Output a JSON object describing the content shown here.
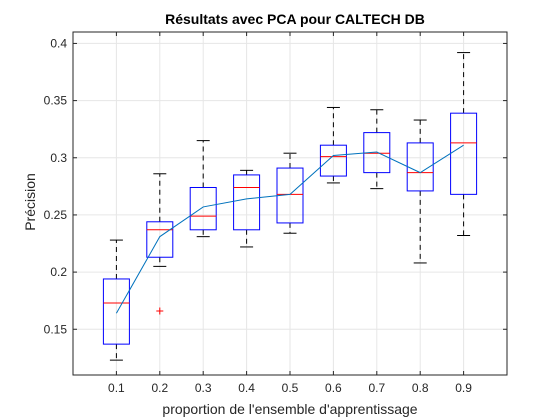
{
  "chart_data": {
    "type": "box",
    "title": "Résultats avec PCA pour CALTECH DB",
    "xlabel": "proportion de l'ensemble d'apprentissage",
    "ylabel": "Précision",
    "categories": [
      "0.1",
      "0.2",
      "0.3",
      "0.4",
      "0.5",
      "0.6",
      "0.7",
      "0.8",
      "0.9"
    ],
    "ylim": [
      0.11,
      0.41
    ],
    "yticks": [
      "0.15",
      "0.2",
      "0.25",
      "0.3",
      "0.35",
      "0.4"
    ],
    "grid": true,
    "boxes": [
      {
        "min": 0.123,
        "q1": 0.137,
        "median": 0.173,
        "q3": 0.194,
        "max": 0.228,
        "outliers": []
      },
      {
        "min": 0.205,
        "q1": 0.213,
        "median": 0.237,
        "q3": 0.244,
        "max": 0.286,
        "outliers": [
          0.166
        ]
      },
      {
        "min": 0.231,
        "q1": 0.237,
        "median": 0.249,
        "q3": 0.274,
        "max": 0.315,
        "outliers": []
      },
      {
        "min": 0.222,
        "q1": 0.237,
        "median": 0.274,
        "q3": 0.285,
        "max": 0.289,
        "outliers": []
      },
      {
        "min": 0.234,
        "q1": 0.243,
        "median": 0.268,
        "q3": 0.291,
        "max": 0.304,
        "outliers": []
      },
      {
        "min": 0.278,
        "q1": 0.284,
        "median": 0.301,
        "q3": 0.311,
        "max": 0.344,
        "outliers": []
      },
      {
        "min": 0.273,
        "q1": 0.287,
        "median": 0.304,
        "q3": 0.322,
        "max": 0.342,
        "outliers": []
      },
      {
        "min": 0.208,
        "q1": 0.271,
        "median": 0.287,
        "q3": 0.313,
        "max": 0.333,
        "outliers": []
      },
      {
        "min": 0.232,
        "q1": 0.268,
        "median": 0.313,
        "q3": 0.339,
        "max": 0.392,
        "outliers": []
      }
    ],
    "mean_line": [
      0.164,
      0.231,
      0.257,
      0.264,
      0.268,
      0.302,
      0.305,
      0.287,
      0.311
    ],
    "colors": {
      "box": "#0000ff",
      "median": "#ff0000",
      "whisker": "#000000",
      "outlier": "#ff0000",
      "mean_line": "#0072bd",
      "grid": "#e6e6e6",
      "axis": "#262626"
    }
  }
}
